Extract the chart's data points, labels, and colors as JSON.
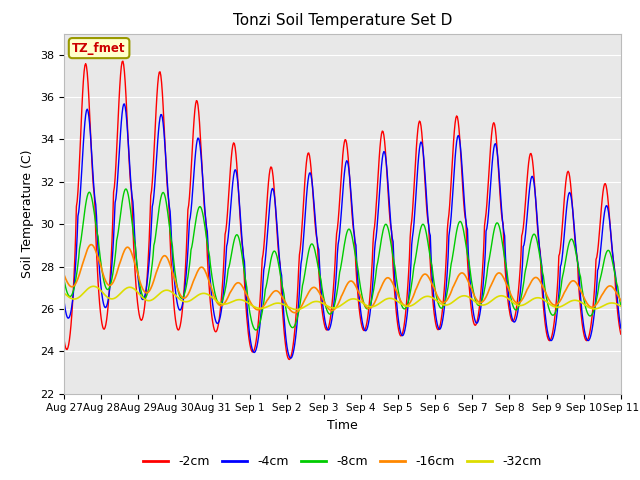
{
  "title": "Tonzi Soil Temperature Set D",
  "xlabel": "Time",
  "ylabel": "Soil Temperature (C)",
  "ylim": [
    22,
    39
  ],
  "yticks": [
    22,
    24,
    26,
    28,
    30,
    32,
    34,
    36,
    38
  ],
  "xlabels": [
    "Aug 27",
    "Aug 28",
    "Aug 29",
    "Aug 30",
    "Aug 31",
    "Sep 1",
    "Sep 2",
    "Sep 3",
    "Sep 4",
    "Sep 5",
    "Sep 6",
    "Sep 7",
    "Sep 8",
    "Sep 9",
    "Sep 10",
    "Sep 11"
  ],
  "annotation_text": "TZ_fmet",
  "annotation_color": "#cc0000",
  "annotation_bg": "#ffffcc",
  "series_colors": [
    "#ff0000",
    "#0000ff",
    "#00cc00",
    "#ff8800",
    "#dddd00"
  ],
  "series_labels": [
    "-2cm",
    "-4cm",
    "-8cm",
    "-16cm",
    "-32cm"
  ],
  "background_color": "#e8e8e8",
  "grid_color": "#ffffff",
  "figsize": [
    6.4,
    4.8
  ],
  "dpi": 100
}
